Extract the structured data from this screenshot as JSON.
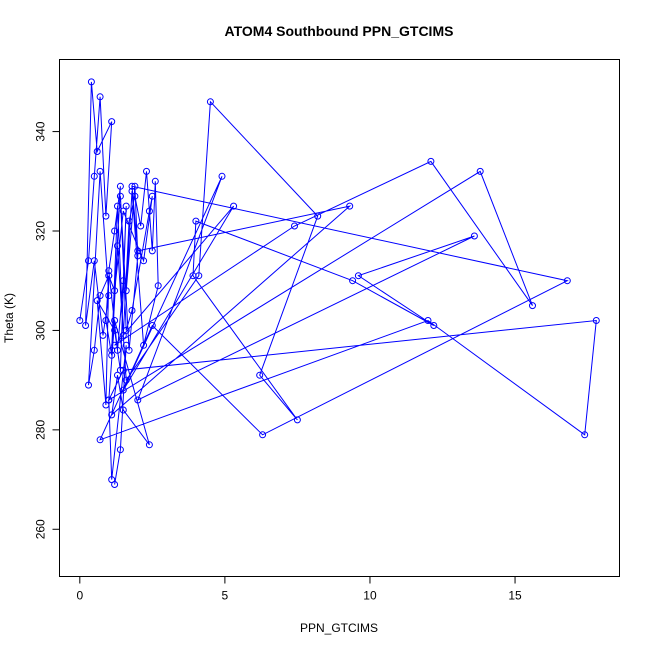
{
  "chart_data": {
    "type": "line",
    "title": "ATOM4 Southbound PPN_GTCIMS",
    "xlabel": "PPN_GTCIMS",
    "ylabel": "Theta (K)",
    "xlim": [
      -0.7,
      18.6
    ],
    "ylim": [
      250.5,
      354.5
    ],
    "xticks": [
      0,
      5,
      10,
      15
    ],
    "yticks": [
      260,
      280,
      300,
      320,
      340
    ],
    "grid": false,
    "series": [
      {
        "color": "#0000ff",
        "x": [
          0.0,
          0.3,
          0.5,
          0.7,
          0.9,
          1.1,
          0.6,
          0.4,
          0.2,
          0.5,
          0.8,
          1.0,
          0.7,
          0.3,
          0.5,
          0.7,
          1.0,
          0.9,
          0.6,
          1.2,
          1.4,
          1.6,
          1.5,
          1.3,
          1.0,
          1.2,
          1.4,
          1.1,
          1.3,
          1.5,
          1.7,
          1.9,
          2.1,
          2.3,
          2.5,
          2.6,
          2.7,
          2.2,
          1.8,
          1.6,
          1.9,
          2.0,
          1.7,
          1.4,
          1.6,
          1.8,
          2.4,
          2.5,
          2.2,
          1.5,
          1.2,
          1.0,
          0.9,
          1.1,
          1.3,
          1.6,
          4.1,
          4.5,
          8.2,
          6.2,
          7.5,
          3.9,
          4.0,
          9.4,
          12.2,
          9.6,
          13.6,
          2.0,
          4.9,
          1.5,
          5.3,
          1.2,
          7.4,
          12.1,
          15.6,
          13.8,
          1.0,
          1.5,
          17.8,
          17.4,
          12.0,
          0.7,
          2.5,
          6.3,
          16.8,
          1.8,
          2.0,
          9.3,
          1.1,
          1.3,
          1.5,
          2.4,
          1.2,
          1.0,
          1.1,
          1.6,
          1.4,
          1.2
        ],
        "y": [
          302,
          314,
          331,
          347,
          323,
          342,
          336,
          350,
          301,
          314,
          299,
          307,
          332,
          289,
          296,
          307,
          311,
          285,
          306,
          300,
          292,
          325,
          310,
          296,
          312,
          320,
          329,
          296,
          325,
          299,
          322,
          327,
          321,
          332,
          316,
          330,
          309,
          297,
          328,
          308,
          329,
          315,
          296,
          327,
          300,
          304,
          324,
          327,
          314,
          324,
          308,
          311,
          302,
          295,
          317,
          290,
          311,
          346,
          323,
          291,
          282,
          311,
          322,
          310,
          301,
          311,
          319,
          286,
          331,
          288,
          325,
          297,
          321,
          334,
          305,
          332,
          286,
          292,
          302,
          279,
          302,
          278,
          301,
          279,
          310,
          329,
          316,
          325,
          283,
          291,
          284,
          277,
          302,
          286,
          270,
          297,
          276,
          269
        ]
      }
    ]
  }
}
